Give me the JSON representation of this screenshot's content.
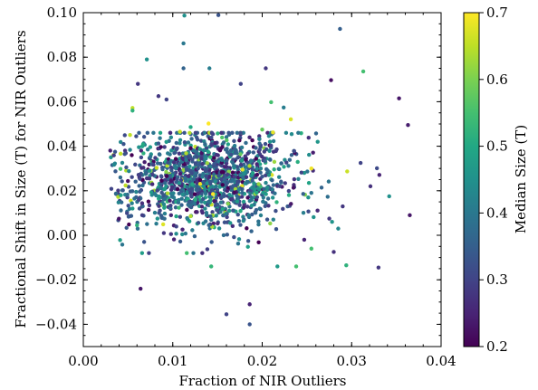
{
  "chart_data": {
    "type": "scatter",
    "xlabel": "Fraction of NIR Outliers",
    "ylabel": "Fractional Shift in Size (T) for NIR Outliers",
    "xlim": [
      0.0,
      0.04
    ],
    "ylim": [
      -0.05,
      0.1
    ],
    "xticks": [
      "0.00",
      "0.01",
      "0.02",
      "0.03",
      "0.04"
    ],
    "yticks": [
      "−0.04",
      "−0.02",
      "0.00",
      "0.02",
      "0.04",
      "0.06",
      "0.08",
      "0.10"
    ],
    "colorbar": {
      "label": "Median Size (T)",
      "range": [
        0.2,
        0.7
      ],
      "ticks": [
        "0.2",
        "0.3",
        "0.4",
        "0.5",
        "0.6",
        "0.7"
      ],
      "colormap": "viridis"
    },
    "cluster": {
      "x_mean": 0.014,
      "x_sd": 0.0048,
      "y_mean": 0.025,
      "y_sd": 0.0105,
      "c_mean": 0.35,
      "c_sd": 0.09,
      "n": 1400
    },
    "points": [
      {
        "x": 0.0151,
        "y": 0.0989,
        "c": 0.33
      },
      {
        "x": 0.0113,
        "y": 0.0987,
        "c": 0.45
      },
      {
        "x": 0.0112,
        "y": 0.0862,
        "c": 0.4
      },
      {
        "x": 0.0071,
        "y": 0.079,
        "c": 0.45
      },
      {
        "x": 0.0112,
        "y": 0.075,
        "c": 0.36
      },
      {
        "x": 0.0141,
        "y": 0.075,
        "c": 0.41
      },
      {
        "x": 0.0204,
        "y": 0.075,
        "c": 0.28
      },
      {
        "x": 0.0287,
        "y": 0.0927,
        "c": 0.35
      },
      {
        "x": 0.0313,
        "y": 0.0736,
        "c": 0.55
      },
      {
        "x": 0.0176,
        "y": 0.068,
        "c": 0.3
      },
      {
        "x": 0.0061,
        "y": 0.068,
        "c": 0.28
      },
      {
        "x": 0.0277,
        "y": 0.0697,
        "c": 0.22
      },
      {
        "x": 0.0353,
        "y": 0.0615,
        "c": 0.23
      },
      {
        "x": 0.0363,
        "y": 0.0495,
        "c": 0.24
      },
      {
        "x": 0.0365,
        "y": 0.009,
        "c": 0.23
      },
      {
        "x": 0.0342,
        "y": 0.0175,
        "c": 0.45
      },
      {
        "x": 0.0331,
        "y": 0.0271,
        "c": 0.25
      },
      {
        "x": 0.0321,
        "y": 0.022,
        "c": 0.27
      },
      {
        "x": 0.0295,
        "y": 0.0287,
        "c": 0.66
      },
      {
        "x": 0.0294,
        "y": -0.0135,
        "c": 0.52
      },
      {
        "x": 0.033,
        "y": -0.0145,
        "c": 0.28
      },
      {
        "x": 0.028,
        "y": -0.0075,
        "c": 0.27
      },
      {
        "x": 0.0064,
        "y": -0.024,
        "c": 0.23
      },
      {
        "x": 0.016,
        "y": -0.0355,
        "c": 0.3
      },
      {
        "x": 0.0186,
        "y": -0.031,
        "c": 0.25
      },
      {
        "x": 0.0186,
        "y": -0.04,
        "c": 0.33
      },
      {
        "x": 0.0133,
        "y": -0.008,
        "c": 0.27
      },
      {
        "x": 0.0143,
        "y": -0.014,
        "c": 0.53
      },
      {
        "x": 0.0217,
        "y": -0.014,
        "c": 0.47
      },
      {
        "x": 0.0238,
        "y": -0.014,
        "c": 0.55
      },
      {
        "x": 0.0055,
        "y": 0.0572,
        "c": 0.65
      },
      {
        "x": 0.0055,
        "y": 0.056,
        "c": 0.52
      },
      {
        "x": 0.0084,
        "y": 0.0625,
        "c": 0.28
      },
      {
        "x": 0.0093,
        "y": 0.061,
        "c": 0.3
      },
      {
        "x": 0.021,
        "y": 0.0598,
        "c": 0.55
      },
      {
        "x": 0.0224,
        "y": 0.0574,
        "c": 0.41
      },
      {
        "x": 0.0232,
        "y": 0.0521,
        "c": 0.67
      },
      {
        "x": 0.014,
        "y": 0.0502,
        "c": 0.7
      },
      {
        "x": 0.012,
        "y": 0.0486,
        "c": 0.5
      },
      {
        "x": 0.0108,
        "y": 0.0465,
        "c": 0.66
      },
      {
        "x": 0.02,
        "y": 0.0475,
        "c": 0.58
      },
      {
        "x": 0.0212,
        "y": 0.0462,
        "c": 0.68
      },
      {
        "x": 0.006,
        "y": 0.0045,
        "c": 0.52
      },
      {
        "x": 0.0068,
        "y": -0.003,
        "c": 0.33
      },
      {
        "x": 0.009,
        "y": 0.001,
        "c": 0.28
      },
      {
        "x": 0.0145,
        "y": 0.0185,
        "c": 0.7
      },
      {
        "x": 0.0178,
        "y": 0.0295,
        "c": 0.68
      },
      {
        "x": 0.0082,
        "y": 0.0303,
        "c": 0.66
      },
      {
        "x": 0.0255,
        "y": 0.03,
        "c": 0.69
      },
      {
        "x": 0.0115,
        "y": 0.0368,
        "c": 0.64
      },
      {
        "x": 0.0196,
        "y": 0.023,
        "c": 0.62
      },
      {
        "x": 0.0055,
        "y": 0.012,
        "c": 0.47
      },
      {
        "x": 0.0045,
        "y": 0.041,
        "c": 0.33
      },
      {
        "x": 0.0042,
        "y": 0.018,
        "c": 0.48
      },
      {
        "x": 0.0285,
        "y": 0.003,
        "c": 0.43
      },
      {
        "x": 0.031,
        "y": 0.0325,
        "c": 0.3
      },
      {
        "x": 0.029,
        "y": 0.013,
        "c": 0.28
      },
      {
        "x": 0.0275,
        "y": 0.0075,
        "c": 0.28
      },
      {
        "x": 0.0262,
        "y": 0.042,
        "c": 0.46
      },
      {
        "x": 0.0247,
        "y": -0.002,
        "c": 0.25
      },
      {
        "x": 0.0255,
        "y": -0.006,
        "c": 0.55
      }
    ]
  }
}
